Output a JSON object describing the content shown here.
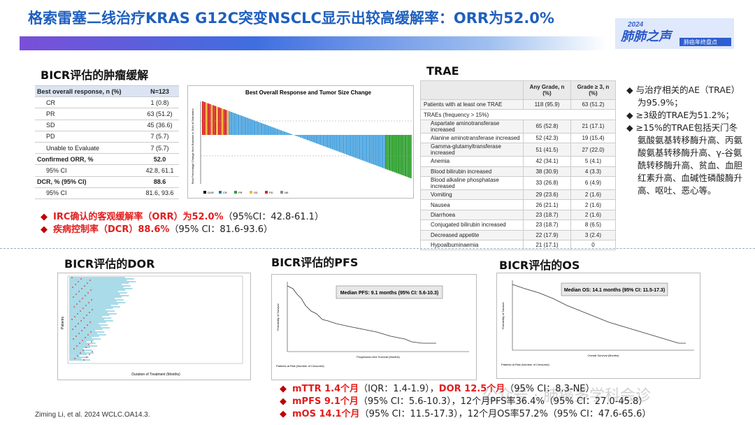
{
  "header": {
    "title": "格索雷塞二线治疗KRAS G12C突变NSCLC显示出较高缓解率：ORR为52.0%",
    "logo_year": "2024",
    "logo_name": "肺肺之声",
    "logo_sub": "肺癌年终盘点"
  },
  "response": {
    "heading": "BICR评估的肿瘤缓解",
    "table": {
      "rows": [
        [
          "Best overall response, n (%)",
          "N=123"
        ],
        [
          "CR",
          "1 (0.8)"
        ],
        [
          "PR",
          "63 (51.2)"
        ],
        [
          "SD",
          "45 (36.6)"
        ],
        [
          "PD",
          "7 (5.7)"
        ],
        [
          "Unable to Evaluate",
          "7 (5.7)"
        ],
        [
          "Confirmed ORR, %",
          "52.0"
        ],
        [
          "95% CI",
          "42.8, 61.1"
        ],
        [
          "DCR, % (95% CI)",
          "88.6"
        ],
        [
          "95% CI",
          "81.6, 93.6"
        ]
      ]
    },
    "figure_title": "Best Overall Response and Tumor Size Change",
    "figure_ylabel": "Best Percentage Change from Baseline in Sum of Diameters",
    "figure_legend": [
      "DOR",
      "CR",
      "PR",
      "SD",
      "PD",
      "NE"
    ],
    "bullets": [
      {
        "highlight": "IRC确认的客观缓解率（ORR）为52.0%",
        "rest": "（95%CI：42.8-61.1）"
      },
      {
        "highlight": "疾病控制率（DCR）88.6%",
        "rest": "（95% CI：81.6-93.6）"
      }
    ]
  },
  "trae": {
    "heading": "TRAE",
    "table": {
      "header": [
        "Any Grade, n (%)",
        "Grade ≥ 3, n (%)"
      ],
      "rows": [
        [
          "Patients with at least one TRAE",
          "118 (95.9)",
          "63 (51.2)"
        ],
        [
          "TRAEs (frequency > 15%)"
        ],
        [
          "Aspartate aminotransferase increased",
          "65 (52.8)",
          "21 (17.1)"
        ],
        [
          "Alanine aminotransferase increased",
          "52 (42.3)",
          "19 (15.4)"
        ],
        [
          "Gamma-glutamyltransferase increased",
          "51 (41.5)",
          "27 (22.0)"
        ],
        [
          "Anemia",
          "42 (34.1)",
          "5 (4.1)"
        ],
        [
          "Blood bilirubin increased",
          "38 (30.9)",
          "4 (3.3)"
        ],
        [
          "Blood alkaline phosphatase increased",
          "33 (26.8)",
          "6 (4.9)"
        ],
        [
          "Vomiting",
          "29 (23.6)",
          "2 (1.6)"
        ],
        [
          "Nausea",
          "26 (21.1)",
          "2 (1.6)"
        ],
        [
          "Diarrhoea",
          "23 (18.7)",
          "2 (1.6)"
        ],
        [
          "Conjugated bilirubin increased",
          "23 (18.7)",
          "8 (6.5)"
        ],
        [
          "Decreased appetite",
          "22 (17.9)",
          "3 (2.4)"
        ],
        [
          "Hypoalbuminaemia",
          "21 (17.1)",
          "0"
        ]
      ]
    },
    "bullets": [
      "与治疗相关的AE（TRAE）为95.9%；",
      "≥3级的TRAE为51.2%；",
      "≥15%的TRAE包括天门冬氨酸氨基转移酶升高、丙氨酸氨基转移酶升高、γ-谷氨酰转移酶升高、贫血、血胆红素升高、血碱性磷酸酶升高、呕吐、恶心等。"
    ]
  },
  "dor": {
    "heading": "BICR评估的DOR",
    "xlabel": "Duration of Treatment (Months)",
    "ylabel": "Patients"
  },
  "pfs": {
    "heading": "BICR评估的PFS",
    "median": "Median PFS: 9.1 months (95% CI: 5.6-10.3)",
    "xlabel": "Progression-free Survival (Months)",
    "ylabel": "Probability of Survival",
    "risk": "Patients at Risk (Number of Censored)"
  },
  "os": {
    "heading": "BICR评估的OS",
    "median": "Median OS: 14.1 months (95% CI: 11.5-17.3)",
    "xlabel": "Overall Survival (Months)",
    "ylabel": "Probability of Survival",
    "risk": "Patients at Risk (Number of Censored)"
  },
  "summary": [
    {
      "parts": [
        {
          "text": "mTTR 1.4个月",
          "red": true
        },
        {
          "text": "（IQR：1.4-1.9），"
        },
        {
          "text": "DOR 12.5个月",
          "red": true
        },
        {
          "text": "（95% CI：8.3-NE）"
        }
      ]
    },
    {
      "parts": [
        {
          "text": "mPFS 9.1个月",
          "red": true
        },
        {
          "text": "（95% CI：5.6-10.3），12个月PFS率36.4%（95% CI：27.0-45.8）"
        }
      ]
    },
    {
      "parts": [
        {
          "text": "mOS 14.1个月",
          "red": true
        },
        {
          "text": "（95% CI：11.5-17.3），12个月OS率57.2%（95% CI：47.6-65.6）"
        }
      ]
    }
  ],
  "citation": "Ziming Li, et al. 2024 WCLC.OA14.3.",
  "watermark": "公众号 · 肺癌多学科会诊"
}
